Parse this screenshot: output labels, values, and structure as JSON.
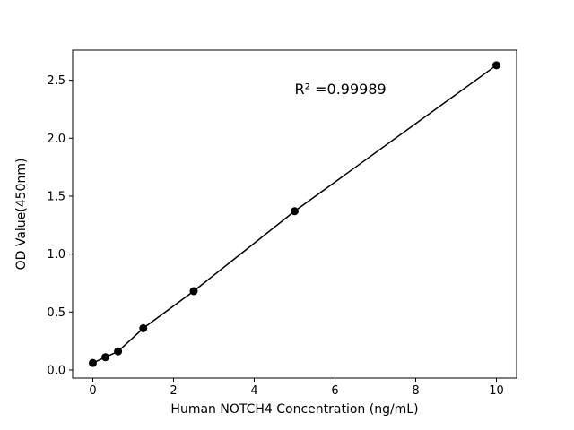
{
  "chart_data": {
    "type": "scatter",
    "title": "",
    "xlabel": "Human NOTCH4 Concentration (ng/mL)",
    "ylabel": "OD Value(450nm)",
    "x": [
      0,
      0.3125,
      0.625,
      1.25,
      2.5,
      5,
      10
    ],
    "y": [
      0.06,
      0.11,
      0.16,
      0.36,
      0.68,
      1.37,
      2.63
    ],
    "show_line": true,
    "marker_color": "#000000",
    "line_color": "#000000",
    "marker_radius": 4.5,
    "xlim": [
      -0.5,
      10.5
    ],
    "ylim": [
      -0.07,
      2.76
    ],
    "xticks": [
      0,
      2,
      4,
      6,
      8,
      10
    ],
    "xtick_labels": [
      "0",
      "2",
      "4",
      "6",
      "8",
      "10"
    ],
    "yticks": [
      0,
      0.5,
      1,
      1.5,
      2,
      2.5
    ],
    "ytick_labels": [
      "0.0",
      "0.5",
      "1.0",
      "1.5",
      "2.0",
      "2.5"
    ],
    "annotation": {
      "text": "R² =0.99989",
      "x": 5.0,
      "y": 2.38
    },
    "grid": false,
    "legend_position": "none",
    "frame_color": "#000000",
    "background_color": "#ffffff"
  }
}
